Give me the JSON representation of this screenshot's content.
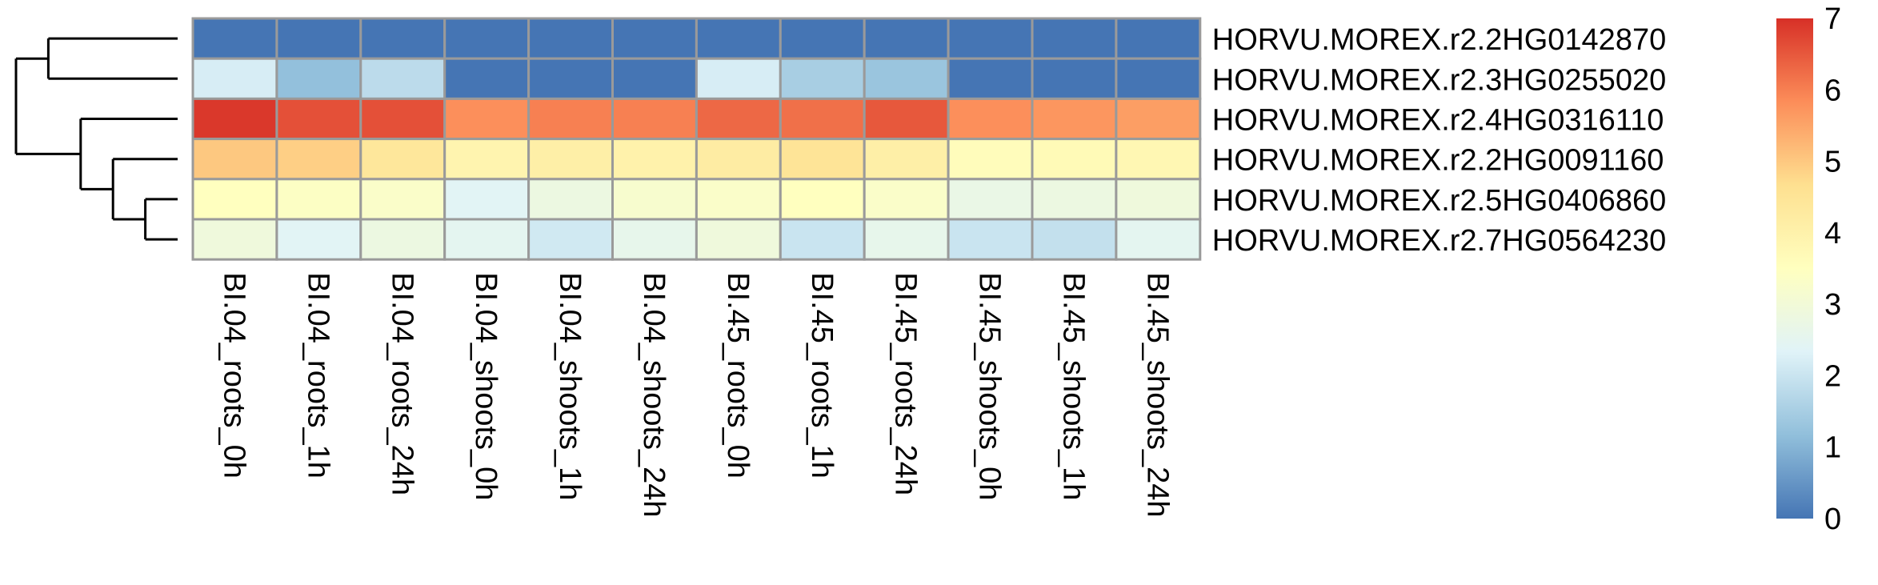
{
  "chart_data": {
    "type": "heatmap",
    "title": "",
    "xlabel": "",
    "ylabel": "",
    "rows": [
      "HORVU.MOREX.r2.2HG0142870",
      "HORVU.MOREX.r2.3HG0255020",
      "HORVU.MOREX.r2.4HG0316110",
      "HORVU.MOREX.r2.2HG0091160",
      "HORVU.MOREX.r2.5HG0406860",
      "HORVU.MOREX.r2.7HG0564230"
    ],
    "columns": [
      "BI.04_roots_0h",
      "BI.04_roots_1h",
      "BI.04_roots_24h",
      "BI.04_shoots_0h",
      "BI.04_shoots_1h",
      "BI.04_shoots_24h",
      "BI.45_roots_0h",
      "BI.45_roots_1h",
      "BI.45_roots_24h",
      "BI.45_shoots_0h",
      "BI.45_shoots_1h",
      "BI.45_shoots_24h"
    ],
    "values": [
      [
        0,
        0,
        0,
        0,
        0,
        0,
        0,
        0,
        0,
        0,
        0,
        0
      ],
      [
        2.2,
        1.2,
        1.8,
        0,
        0,
        0,
        2.2,
        1.5,
        1.3,
        0,
        0,
        0
      ],
      [
        6.9,
        6.6,
        6.6,
        5.8,
        6.0,
        6.0,
        6.3,
        6.2,
        6.5,
        5.8,
        5.7,
        5.6
      ],
      [
        5.0,
        4.9,
        4.4,
        3.9,
        4.1,
        4.0,
        4.2,
        4.5,
        4.1,
        3.6,
        3.7,
        3.8
      ],
      [
        3.5,
        3.4,
        3.3,
        2.4,
        2.8,
        3.2,
        3.3,
        3.5,
        3.3,
        2.7,
        2.8,
        2.9
      ],
      [
        2.9,
        2.4,
        2.8,
        2.5,
        2.1,
        2.6,
        2.9,
        2.0,
        2.6,
        2.0,
        1.9,
        2.5
      ]
    ],
    "color_scale": {
      "min": 0,
      "max": 7,
      "ticks": [
        "0",
        "1",
        "2",
        "3",
        "4",
        "5",
        "6",
        "7"
      ],
      "colors": [
        "#4575b4",
        "#91bfdb",
        "#e0f3f8",
        "#ffffbf",
        "#fee090",
        "#fc8d59",
        "#d73027"
      ]
    },
    "grid_color": "#9a9a9a",
    "dendrogram": {
      "order": [
        0,
        1,
        2,
        3,
        4,
        5
      ],
      "merges": [
        [
          4,
          5
        ],
        [
          3,
          "m0"
        ],
        [
          2,
          "m1"
        ],
        [
          0,
          1
        ],
        [
          "m3",
          "m2"
        ]
      ],
      "heights": [
        1,
        2,
        3,
        4,
        5
      ]
    }
  }
}
